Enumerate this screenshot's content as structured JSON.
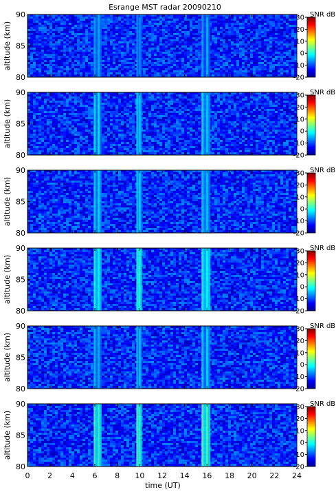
{
  "chart_data": {
    "type": "heatmap",
    "title": "Esrange MST radar 20090210",
    "xlabel": "time (UT)",
    "ylabel": "altitude (km)",
    "xlim": [
      0,
      24
    ],
    "ylim": [
      80,
      90
    ],
    "x_ticks": [
      "0",
      "2",
      "4",
      "6",
      "8",
      "10",
      "12",
      "14",
      "16",
      "18",
      "20",
      "22",
      "24"
    ],
    "y_ticks": [
      "80",
      "85",
      "90"
    ],
    "colorbar": {
      "label": "SNR dB",
      "range": [
        -20,
        30
      ],
      "ticks": [
        "30",
        "20",
        "10",
        "0",
        "-10",
        "-20"
      ],
      "colormap": "jet"
    },
    "panel_count": 6,
    "background_snr_db": -12,
    "enhanced_bands": [
      {
        "time_range_ut": [
          5.9,
          6.6
        ],
        "peak_snr_db_by_panel": [
          -5,
          -3,
          -3,
          0,
          -4,
          2
        ]
      },
      {
        "time_range_ut": [
          9.7,
          10.2
        ],
        "peak_snr_db_by_panel": [
          -5,
          -2,
          -2,
          2,
          -3,
          3
        ]
      },
      {
        "time_range_ut": [
          15.5,
          16.3
        ],
        "peak_snr_db_by_panel": [
          -5,
          -3,
          -3,
          0,
          -4,
          2
        ]
      }
    ]
  }
}
